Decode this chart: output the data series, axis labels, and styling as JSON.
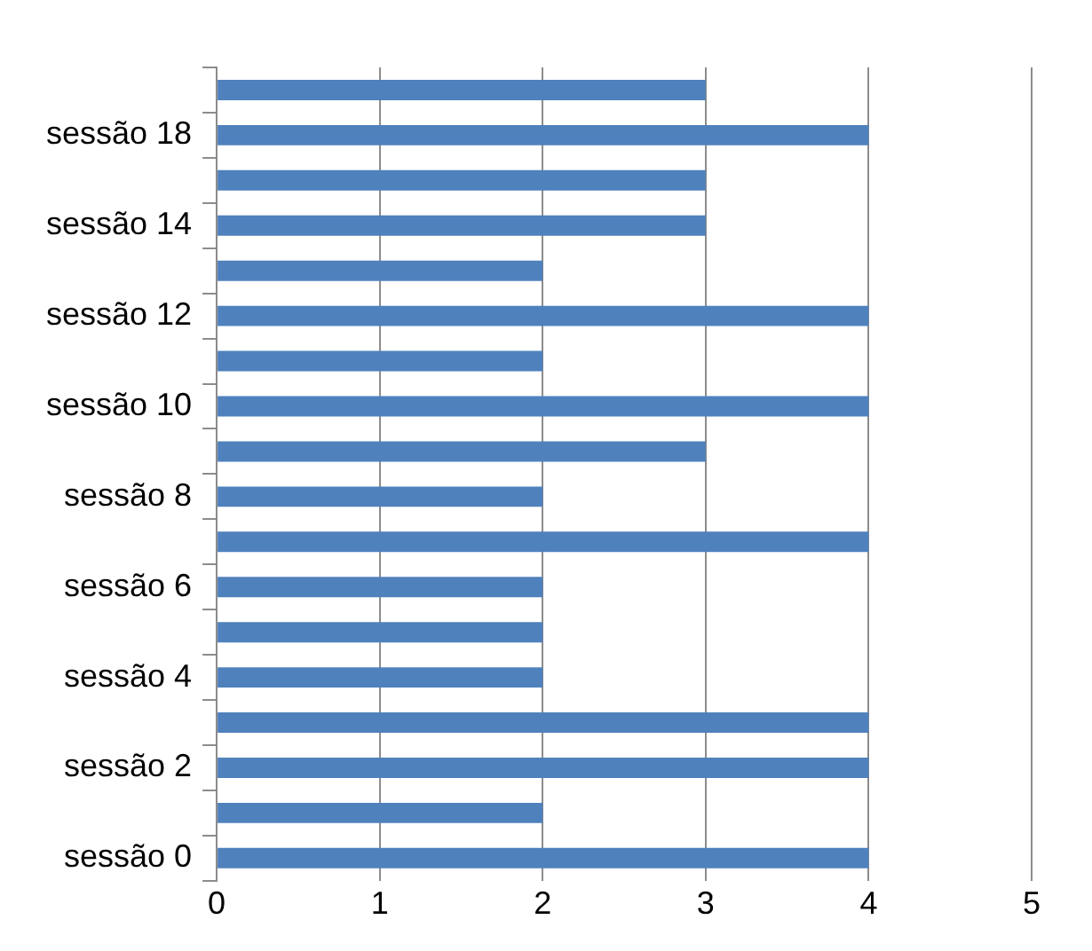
{
  "chart_data": {
    "type": "bar",
    "orientation": "horizontal",
    "categories": [
      null,
      "sessão 18",
      null,
      "sessão 14",
      null,
      "sessão 12",
      null,
      "sessão 10",
      null,
      "sessão 8",
      null,
      "sessão 6",
      null,
      "sessão 4",
      null,
      "sessão 2",
      null,
      "sessão 0"
    ],
    "values": [
      3,
      4,
      3,
      3,
      2,
      4,
      2,
      4,
      3,
      2,
      4,
      2,
      2,
      2,
      4,
      4,
      2,
      4
    ],
    "color": "#4f81bd",
    "xlim": [
      0,
      5
    ],
    "xticks": [
      0,
      1,
      2,
      3,
      4,
      5
    ],
    "grid": "x",
    "legend": false
  }
}
